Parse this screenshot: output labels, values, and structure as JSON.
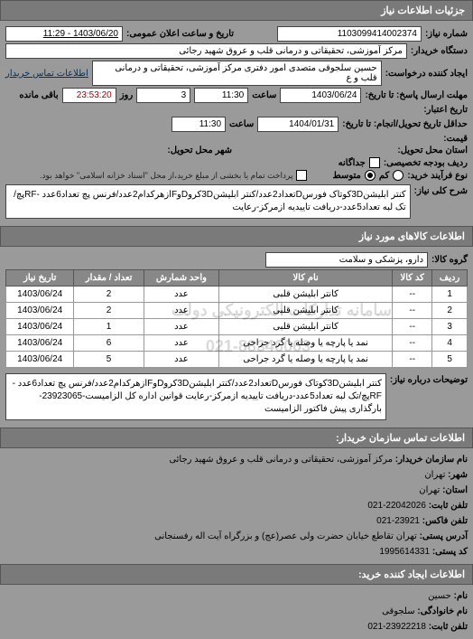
{
  "header1": "جزئیات اطلاعات نیاز",
  "req_no_label": "شماره نیاز:",
  "req_no": "1103099414002374",
  "pub_date_label": "تاریخ و ساعت اعلان عمومی:",
  "pub_date": "1403/06/20 - 11:29",
  "buyer_dev_label": "دستگاه خریدار:",
  "buyer_dev": "مرکز آموزشی، تحقیقاتی و درمانی قلب و عروق شهید رجائی",
  "requester_label": "ایجاد کننده درخواست:",
  "requester": "حسین سلجوقی متصدی امور دفتری مرکز آموزشی، تحقیقاتی و درمانی قلب و ع",
  "contact_link": "اطلاعات تماس خریدار",
  "deadline_label": "مهلت ارسال پاسخ: تا تاریخ:",
  "deadline_date": "1403/06/24",
  "deadline_hour_label": "ساعت",
  "deadline_hour": "11:30",
  "days_label": "روز",
  "days": "3",
  "remain_label": "باقی مانده",
  "remain": "23:53:20",
  "validity_label": "تاریخ اعتبار:",
  "delivery_from_label": "حداقل تاریخ تحویل/انجام: تا تاریخ:",
  "delivery_from_date": "1404/01/31",
  "delivery_from_hour": "11:30",
  "price_label": "قیمت:",
  "country_label": "استان محل تحویل:",
  "city_label": "شهر محل تحویل:",
  "budget_row_label": "ردیف بودجه تخصیصی:",
  "separate_label": "جداگانه",
  "barcode_label": "نوع فرآیند خرید:",
  "low": "کم",
  "med": "متوسط",
  "prepay_note": "پرداخت تمام یا بخشی از مبلغ خرید،از محل \"اسناد خزانه اسلامی\" خواهد بود.",
  "desc_label": "شرح کلی نیاز:",
  "desc": "کنتر ابلیشن3Dکوتاک فورسDتعداد2عدد/کنتر ابلیشن3DکروDوFازهرکدام2عدد/فرنس پچ تعداد6عدد -RFپچ/تک لبه تعداد5عدد-دریافت تاییدیه ازمرکز-رعایت",
  "header2": "اطلاعات کالاهای مورد نیاز",
  "group_label": "گروه کالا:",
  "group": "دارو، پزشکی و سلامت",
  "table": {
    "cols": [
      "ردیف",
      "کد کالا",
      "نام کالا",
      "واحد شمارش",
      "تعداد / مقدار",
      "تاریخ نیاز"
    ],
    "rows": [
      [
        "1",
        "--",
        "کانتر ابلیشن قلبی",
        "عدد",
        "2",
        "1403/06/24"
      ],
      [
        "2",
        "--",
        "کانتر ابلیشن قلبی",
        "عدد",
        "2",
        "1403/06/24"
      ],
      [
        "3",
        "--",
        "کانتر ابلیشن قلبی",
        "عدد",
        "1",
        "1403/06/24"
      ],
      [
        "4",
        "--",
        "نمد یا پارچه یا وصله یا گرد جراحی",
        "عدد",
        "6",
        "1403/06/24"
      ],
      [
        "5",
        "--",
        "نمد یا پارچه یا وصله یا گرد جراحی",
        "عدد",
        "5",
        "1403/06/24"
      ]
    ]
  },
  "notes_label": "توضیحات درباره نیاز:",
  "notes": "کنتر ابلیشن3Dکوتاک فورسDتعداد2عدد/کنتر ابلیشن3DکروDوFازهرکدام2عدد/فرنس پچ تعداد6عدد -RFپچ/تک لبه تعداد5عدد-دریافت تاییدیه ازمرکز-رعایت قوانین اداره کل الزامیست-23923065-بارگذاری پیش فاکتور الزامیست",
  "header3": "اطلاعات تماس سازمان خریدار:",
  "org": {
    "name_label": "نام سازمان خریدار:",
    "name": "مرکز آموزشی، تحقیقاتی و درمانی قلب و عروق شهید رجائی",
    "city_label": "شهر:",
    "city": "تهران",
    "province_label": "استان:",
    "province": "تهران",
    "phone_label": "تلفن ثابت:",
    "phone": "22042026-021",
    "fax_label": "تلفن فاکس:",
    "fax": "23921-021",
    "addr_label": "آدرس پستی:",
    "addr": "تهران تقاطع خیابان حضرت ولی عصر(عج) و بزرگراه آیت اله رفسنجانی",
    "code_label": "کد پستی:",
    "code": "1995614331"
  },
  "header4": "اطلاعات ایجاد کننده خرید:",
  "creator": {
    "first_label": "نام:",
    "first": "حسین",
    "last_label": "نام خانوادگی:",
    "last": "سلجوقی",
    "phone_label": "تلفن ثابت:",
    "phone": "23922218-021"
  },
  "wm1": "سامانه تدارکات الکترونیکی دولت",
  "wm2": "021-88346063"
}
